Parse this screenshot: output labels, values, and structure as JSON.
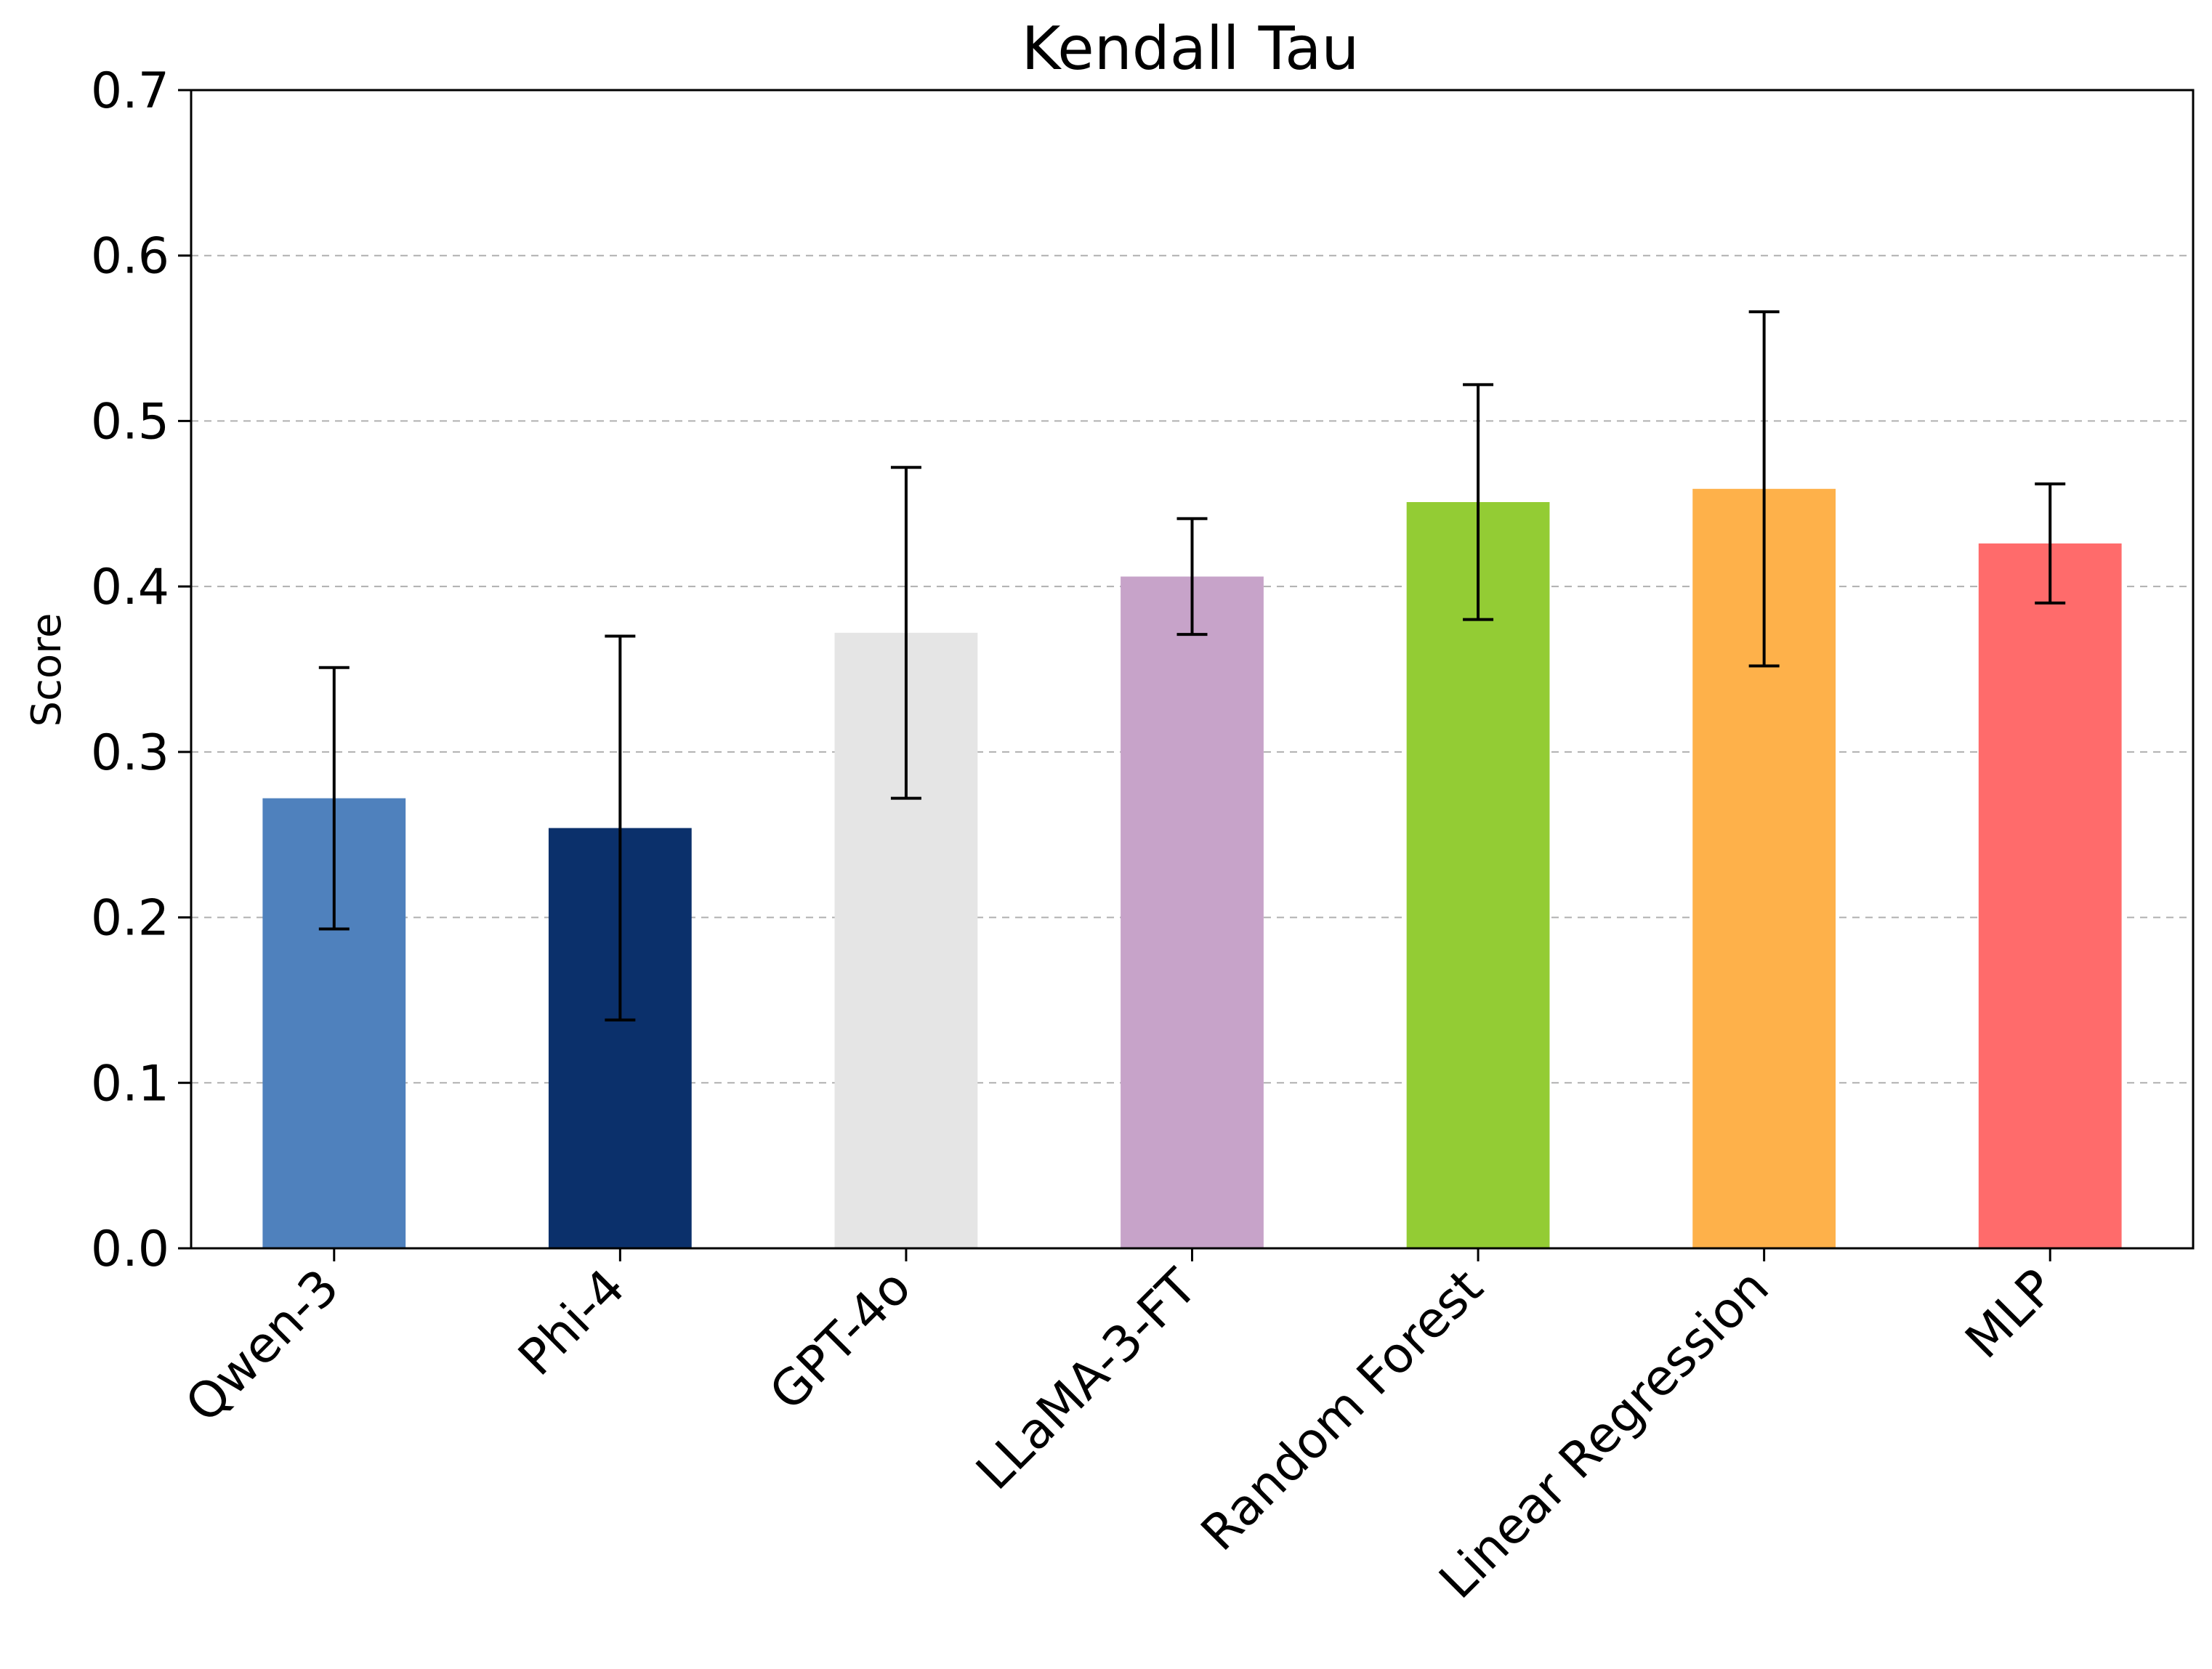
{
  "chart_data": {
    "type": "bar",
    "title": "Kendall Tau",
    "xlabel": "",
    "ylabel": "Score",
    "ylim": [
      0,
      0.7
    ],
    "yticks": [
      "0.0",
      "0.1",
      "0.2",
      "0.3",
      "0.4",
      "0.5",
      "0.6",
      "0.7"
    ],
    "grid": "horizontal dashed",
    "categories": [
      "Qwen-3",
      "Phi-4",
      "GPT-4o",
      "LLaMA-3-FT",
      "Random Forest",
      "Linear Regression",
      "MLP"
    ],
    "values": [
      0.272,
      0.254,
      0.372,
      0.406,
      0.451,
      0.459,
      0.426
    ],
    "error_low": [
      0.193,
      0.138,
      0.272,
      0.371,
      0.38,
      0.352,
      0.39
    ],
    "error_high": [
      0.351,
      0.37,
      0.472,
      0.441,
      0.522,
      0.566,
      0.462
    ],
    "colors": [
      "#4f81bd",
      "#0b306b",
      "#e5e5e5",
      "#c7a3c9",
      "#93cc34",
      "#feb14a",
      "#ff6b6b"
    ]
  }
}
